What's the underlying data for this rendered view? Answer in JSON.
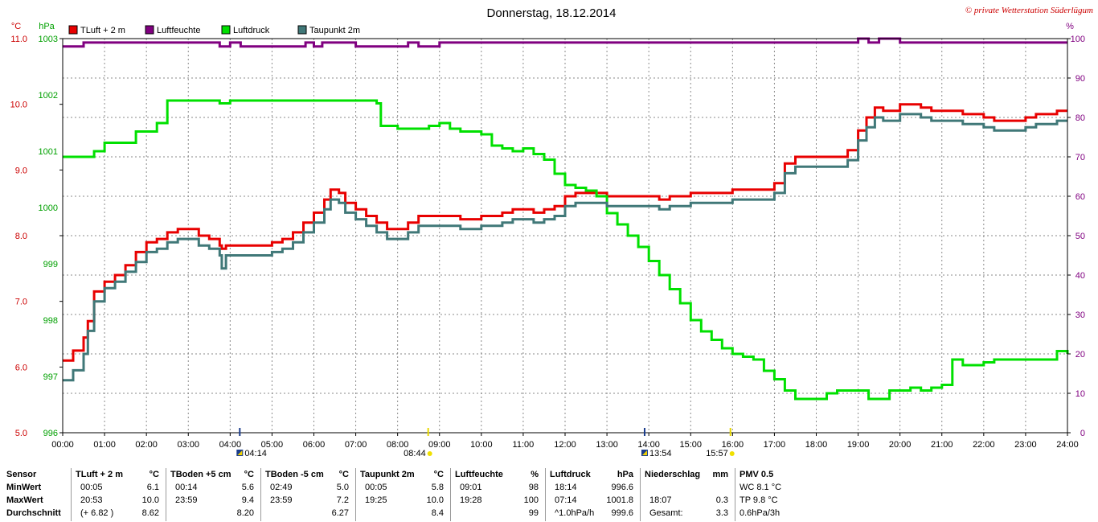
{
  "title": "Donnerstag, 18.12.2014",
  "copyright": "© private Wetterstation Süderlügum",
  "units": {
    "temp": "°C",
    "pressure": "hPa",
    "humidity": "%"
  },
  "colors": {
    "tluft": "#e80000",
    "luftfeuchte": "#800080",
    "luftdruck": "#00e000",
    "taupunkt": "#407878",
    "axis_temp": "#cc0000",
    "axis_pressure": "#00a000",
    "axis_humidity": "#800080",
    "copyright": "#cc0000"
  },
  "legend": [
    {
      "key": "tluft",
      "label": "TLuft + 2 m"
    },
    {
      "key": "luftfeuchte",
      "label": "Luftfeuchte"
    },
    {
      "key": "luftdruck",
      "label": "Luftdruck"
    },
    {
      "key": "taupunkt",
      "label": "Taupunkt 2m"
    }
  ],
  "chart_data": {
    "type": "line",
    "title": "Donnerstag, 18.12.2014",
    "x_unit": "hour",
    "xlim": [
      0,
      24
    ],
    "x_ticks": [
      "00:00",
      "01:00",
      "02:00",
      "03:00",
      "04:00",
      "05:00",
      "06:00",
      "07:00",
      "08:00",
      "09:00",
      "10:00",
      "11:00",
      "12:00",
      "13:00",
      "14:00",
      "15:00",
      "16:00",
      "17:00",
      "18:00",
      "19:00",
      "20:00",
      "21:00",
      "22:00",
      "23:00",
      "24:00"
    ],
    "axes": {
      "temp": {
        "label": "°C",
        "lim": [
          5.0,
          11.0
        ],
        "ticks": [
          "5.0",
          "6.0",
          "7.0",
          "8.0",
          "9.0",
          "10.0",
          "11.0"
        ]
      },
      "pressure": {
        "label": "hPa",
        "lim": [
          996,
          1003
        ],
        "ticks": [
          "996",
          "997",
          "998",
          "999",
          "1000",
          "1001",
          "1002",
          "1003"
        ]
      },
      "humidity": {
        "label": "%",
        "lim": [
          0,
          100
        ],
        "ticks": [
          "0",
          "10",
          "20",
          "30",
          "40",
          "50",
          "60",
          "70",
          "80",
          "90",
          "100"
        ]
      }
    },
    "grid": true,
    "events": [
      {
        "time": "04:14",
        "hour": 4.23,
        "icon": "moonrise-icon"
      },
      {
        "time": "08:44",
        "hour": 8.73,
        "icon": "sunrise-icon"
      },
      {
        "time": "13:54",
        "hour": 13.9,
        "icon": "moonset-icon"
      },
      {
        "time": "15:57",
        "hour": 15.95,
        "icon": "sunset-icon"
      }
    ],
    "series": [
      {
        "name": "TLuft + 2 m",
        "key": "tluft",
        "axis": "temp",
        "x": [
          0,
          0.25,
          0.5,
          0.6,
          0.75,
          1.0,
          1.25,
          1.5,
          1.75,
          2.0,
          2.25,
          2.5,
          2.75,
          3.0,
          3.25,
          3.5,
          3.75,
          3.8,
          3.9,
          4.0,
          4.25,
          4.5,
          4.75,
          5.0,
          5.25,
          5.5,
          5.75,
          6.0,
          6.25,
          6.4,
          6.6,
          6.75,
          7.0,
          7.25,
          7.5,
          7.75,
          8.0,
          8.25,
          8.5,
          8.75,
          9.0,
          9.25,
          9.5,
          9.75,
          10.0,
          10.25,
          10.5,
          10.75,
          11.0,
          11.25,
          11.5,
          11.75,
          12.0,
          12.25,
          12.5,
          12.75,
          13.0,
          13.25,
          13.5,
          13.75,
          14.0,
          14.25,
          14.5,
          14.75,
          15.0,
          15.25,
          15.5,
          15.75,
          16.0,
          16.25,
          16.5,
          16.75,
          17.0,
          17.25,
          17.5,
          17.75,
          18.0,
          18.25,
          18.5,
          18.75,
          19.0,
          19.2,
          19.4,
          19.6,
          19.8,
          20.0,
          20.25,
          20.5,
          20.75,
          21.0,
          21.25,
          21.5,
          21.75,
          22.0,
          22.25,
          22.5,
          22.75,
          23.0,
          23.25,
          23.5,
          23.75,
          24.0
        ],
        "values": [
          6.1,
          6.25,
          6.45,
          6.7,
          7.15,
          7.3,
          7.4,
          7.55,
          7.75,
          7.9,
          7.95,
          8.05,
          8.1,
          8.1,
          8.0,
          7.95,
          7.85,
          7.8,
          7.85,
          7.85,
          7.85,
          7.85,
          7.85,
          7.9,
          7.95,
          8.05,
          8.2,
          8.35,
          8.55,
          8.7,
          8.65,
          8.5,
          8.4,
          8.3,
          8.2,
          8.1,
          8.1,
          8.2,
          8.3,
          8.3,
          8.3,
          8.3,
          8.25,
          8.25,
          8.3,
          8.3,
          8.35,
          8.4,
          8.4,
          8.35,
          8.4,
          8.45,
          8.6,
          8.65,
          8.65,
          8.65,
          8.6,
          8.6,
          8.6,
          8.6,
          8.6,
          8.55,
          8.6,
          8.6,
          8.65,
          8.65,
          8.65,
          8.65,
          8.7,
          8.7,
          8.7,
          8.7,
          8.8,
          9.1,
          9.2,
          9.2,
          9.2,
          9.2,
          9.2,
          9.3,
          9.6,
          9.8,
          9.95,
          9.9,
          9.9,
          10.0,
          10.0,
          9.95,
          9.9,
          9.9,
          9.9,
          9.85,
          9.85,
          9.8,
          9.75,
          9.75,
          9.75,
          9.8,
          9.85,
          9.85,
          9.9,
          9.9
        ],
        "min": 6.1,
        "max": 10.0
      },
      {
        "name": "Luftfeuchte",
        "key": "luftfeuchte",
        "axis": "humidity",
        "x": [
          0,
          0.45,
          0.5,
          3.7,
          3.75,
          4.0,
          4.25,
          5.75,
          5.8,
          6.0,
          6.2,
          7.0,
          7.5,
          8.0,
          8.25,
          8.5,
          8.75,
          9.0,
          18.75,
          19.0,
          19.25,
          19.5,
          20.0,
          24.0
        ],
        "values": [
          98,
          98,
          99,
          99,
          98,
          99,
          98,
          98,
          99,
          98,
          99,
          98,
          98,
          98,
          99,
          98,
          98,
          99,
          99,
          100,
          99,
          100,
          99,
          99
        ],
        "min": 98,
        "max": 100
      },
      {
        "name": "Luftdruck",
        "key": "luftdruck",
        "axis": "pressure",
        "x": [
          0,
          0.5,
          0.75,
          1.0,
          1.75,
          2.25,
          2.5,
          3.5,
          3.75,
          4.0,
          5.75,
          6.0,
          7.25,
          7.5,
          7.6,
          8.0,
          8.25,
          8.5,
          8.75,
          9.0,
          9.25,
          9.5,
          10.0,
          10.25,
          10.5,
          10.75,
          11.0,
          11.25,
          11.5,
          11.75,
          12.0,
          12.25,
          12.5,
          12.75,
          13.0,
          13.25,
          13.5,
          13.75,
          14.0,
          14.25,
          14.5,
          14.75,
          15.0,
          15.25,
          15.5,
          15.75,
          16.0,
          16.25,
          16.5,
          16.75,
          17.0,
          17.25,
          17.5,
          17.75,
          18.0,
          18.25,
          18.5,
          18.75,
          19.0,
          19.25,
          19.5,
          19.75,
          20.0,
          20.25,
          20.5,
          20.75,
          21.0,
          21.25,
          21.5,
          21.75,
          22.0,
          22.25,
          22.5,
          22.75,
          23.0,
          23.25,
          23.5,
          23.75,
          24.0
        ],
        "values": [
          1000.9,
          1000.9,
          1001.0,
          1001.15,
          1001.35,
          1001.5,
          1001.9,
          1001.9,
          1001.85,
          1001.9,
          1001.9,
          1001.9,
          1001.9,
          1001.85,
          1001.45,
          1001.4,
          1001.4,
          1001.4,
          1001.45,
          1001.5,
          1001.4,
          1001.35,
          1001.3,
          1001.1,
          1001.05,
          1001.0,
          1001.05,
          1000.95,
          1000.85,
          1000.6,
          1000.4,
          1000.35,
          1000.3,
          1000.2,
          999.9,
          999.7,
          999.5,
          999.3,
          999.05,
          998.8,
          998.55,
          998.3,
          998.0,
          997.8,
          997.65,
          997.5,
          997.4,
          997.35,
          997.3,
          997.1,
          996.95,
          996.75,
          996.6,
          996.6,
          996.6,
          996.7,
          996.75,
          996.75,
          996.75,
          996.6,
          996.6,
          996.75,
          996.75,
          996.8,
          996.75,
          996.8,
          996.85,
          997.3,
          997.2,
          997.2,
          997.25,
          997.3,
          997.3,
          997.3,
          997.3,
          997.3,
          997.3,
          997.45,
          997.4
        ],
        "min": 996.6,
        "max": 1001.8
      },
      {
        "name": "Taupunkt 2m",
        "key": "taupunkt",
        "axis": "temp",
        "x": [
          0,
          0.25,
          0.5,
          0.6,
          0.75,
          1.0,
          1.25,
          1.5,
          1.75,
          2.0,
          2.25,
          2.5,
          2.75,
          3.0,
          3.25,
          3.5,
          3.75,
          3.8,
          3.9,
          4.0,
          4.25,
          4.5,
          4.75,
          5.0,
          5.25,
          5.5,
          5.75,
          6.0,
          6.25,
          6.4,
          6.6,
          6.75,
          7.0,
          7.25,
          7.5,
          7.75,
          8.0,
          8.25,
          8.5,
          8.75,
          9.0,
          9.25,
          9.5,
          9.75,
          10.0,
          10.25,
          10.5,
          10.75,
          11.0,
          11.25,
          11.5,
          11.75,
          12.0,
          12.25,
          12.5,
          12.75,
          13.0,
          13.25,
          13.5,
          13.75,
          14.0,
          14.25,
          14.5,
          14.75,
          15.0,
          15.25,
          15.5,
          15.75,
          16.0,
          16.25,
          16.5,
          16.75,
          17.0,
          17.25,
          17.5,
          17.75,
          18.0,
          18.25,
          18.5,
          18.75,
          19.0,
          19.2,
          19.4,
          19.6,
          19.8,
          20.0,
          20.25,
          20.5,
          20.75,
          21.0,
          21.25,
          21.5,
          21.75,
          22.0,
          22.25,
          22.5,
          22.75,
          23.0,
          23.25,
          23.5,
          23.75,
          24.0
        ],
        "values": [
          5.8,
          5.95,
          6.2,
          6.55,
          7.0,
          7.2,
          7.3,
          7.45,
          7.6,
          7.75,
          7.8,
          7.9,
          7.95,
          7.95,
          7.85,
          7.8,
          7.7,
          7.5,
          7.7,
          7.7,
          7.7,
          7.7,
          7.7,
          7.75,
          7.8,
          7.9,
          8.05,
          8.2,
          8.4,
          8.55,
          8.5,
          8.35,
          8.25,
          8.15,
          8.05,
          7.95,
          7.95,
          8.05,
          8.15,
          8.15,
          8.15,
          8.15,
          8.1,
          8.1,
          8.15,
          8.15,
          8.2,
          8.25,
          8.25,
          8.2,
          8.25,
          8.3,
          8.45,
          8.5,
          8.5,
          8.5,
          8.45,
          8.45,
          8.45,
          8.45,
          8.45,
          8.4,
          8.45,
          8.45,
          8.5,
          8.5,
          8.5,
          8.5,
          8.55,
          8.55,
          8.55,
          8.55,
          8.65,
          8.95,
          9.05,
          9.05,
          9.05,
          9.05,
          9.05,
          9.15,
          9.45,
          9.65,
          9.8,
          9.75,
          9.75,
          9.85,
          9.85,
          9.8,
          9.75,
          9.75,
          9.75,
          9.7,
          9.7,
          9.65,
          9.6,
          9.6,
          9.6,
          9.65,
          9.7,
          9.7,
          9.75,
          9.75
        ],
        "min": 5.8,
        "max": 10.0
      }
    ]
  },
  "stats": {
    "sensor": {
      "header": "Sensor",
      "rows": [
        "MinWert",
        "MaxWert",
        "Durchschnitt"
      ]
    },
    "columns": [
      {
        "header": "TLuft + 2 m",
        "unit": "°C",
        "rows": [
          {
            "a": "00:05",
            "v": "6.1"
          },
          {
            "a": "20:53",
            "v": "10.0"
          },
          {
            "a": "(+ 6.82 )",
            "v": "8.62"
          }
        ]
      },
      {
        "header": "TBoden +5 cm",
        "unit": "°C",
        "rows": [
          {
            "a": "00:14",
            "v": "5.6"
          },
          {
            "a": "23:59",
            "v": "9.4"
          },
          {
            "a": "",
            "v": "8.20"
          }
        ]
      },
      {
        "header": "TBoden -5 cm",
        "unit": "°C",
        "rows": [
          {
            "a": "02:49",
            "v": "5.0"
          },
          {
            "a": "23:59",
            "v": "7.2"
          },
          {
            "a": "",
            "v": "6.27"
          }
        ]
      },
      {
        "header": "Taupunkt 2m",
        "unit": "°C",
        "rows": [
          {
            "a": "00:05",
            "v": "5.8"
          },
          {
            "a": "19:25",
            "v": "10.0"
          },
          {
            "a": "",
            "v": "8.4"
          }
        ]
      },
      {
        "header": "Luftfeuchte",
        "unit": "%",
        "rows": [
          {
            "a": "09:01",
            "v": "98"
          },
          {
            "a": "19:28",
            "v": "100"
          },
          {
            "a": "",
            "v": "99"
          }
        ]
      },
      {
        "header": "Luftdruck",
        "unit": "hPa",
        "rows": [
          {
            "a": "18:14",
            "v": "996.6"
          },
          {
            "a": "07:14",
            "v": "1001.8"
          },
          {
            "a": "^1.0hPa/h",
            "v": "999.6"
          }
        ]
      },
      {
        "header": "Niederschlag",
        "unit": "mm",
        "rows": [
          {
            "a": "",
            "v": ""
          },
          {
            "a": "18:07",
            "v": "0.3"
          },
          {
            "a": "Gesamt:",
            "v": "3.3"
          }
        ]
      }
    ],
    "pmv": {
      "header": "PMV 0.5",
      "rows": [
        "WC 8.1 °C",
        "TP 9.8 °C",
        "0.6hPa/3h"
      ]
    }
  }
}
